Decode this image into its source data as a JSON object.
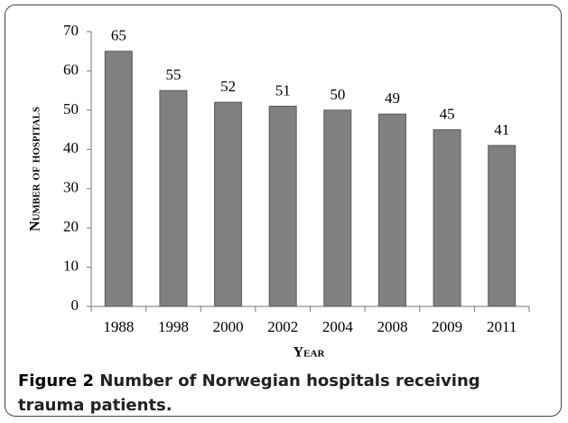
{
  "chart_data": {
    "type": "bar",
    "categories": [
      "1988",
      "1998",
      "2000",
      "2002",
      "2004",
      "2008",
      "2009",
      "2011"
    ],
    "values": [
      65,
      55,
      52,
      51,
      50,
      49,
      45,
      41
    ],
    "color": "#808080",
    "ylim": [
      0,
      70
    ],
    "yticks": [
      0,
      10,
      20,
      30,
      40,
      50,
      60,
      70
    ],
    "y_label": "Number of hospitals",
    "x_label": "Year",
    "grid": false
  },
  "caption": {
    "label": "Figure 2",
    "text": "Number of Norwegian hospitals receiving trauma patients."
  }
}
